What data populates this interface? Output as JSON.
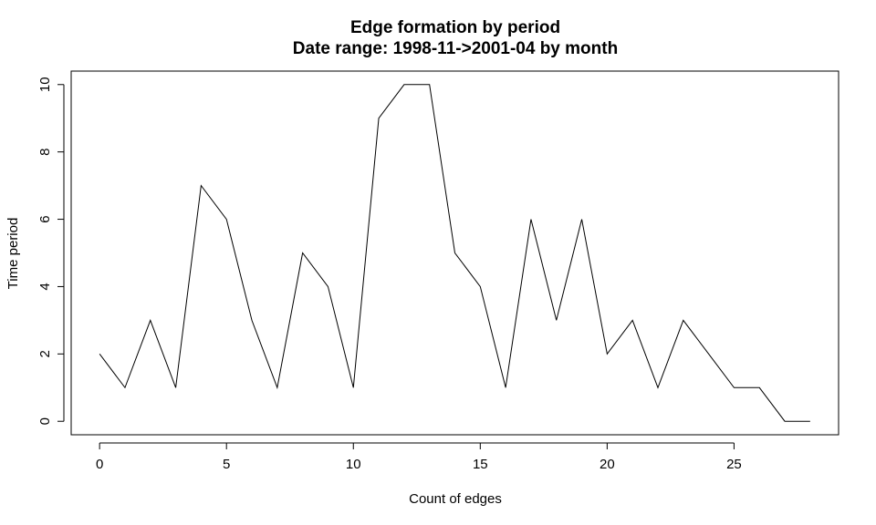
{
  "chart_data": {
    "type": "line",
    "title": "Edge formation by period",
    "subtitle": "Date range: 1998-11->2001-04 by month",
    "xlabel": "Count of edges",
    "ylabel": "Time period",
    "x": [
      0,
      1,
      2,
      3,
      4,
      5,
      6,
      7,
      8,
      9,
      10,
      11,
      12,
      13,
      14,
      15,
      16,
      17,
      18,
      19,
      20,
      21,
      22,
      23,
      24,
      25,
      26,
      27,
      28
    ],
    "series": [
      {
        "values": [
          2,
          1,
          3,
          1,
          7,
          6,
          3,
          1,
          5,
          4,
          1,
          9,
          10,
          10,
          5,
          4,
          1,
          6,
          3,
          6,
          2,
          3,
          1,
          3,
          2,
          1,
          1,
          0,
          0
        ]
      }
    ],
    "xlim": [
      -1.12,
      29.12
    ],
    "ylim": [
      -0.4,
      10.4
    ],
    "xticks": [
      0,
      5,
      10,
      15,
      20,
      25
    ],
    "yticks": [
      0,
      2,
      4,
      6,
      8,
      10
    ],
    "xtick_labels": [
      "0",
      "5",
      "10",
      "15",
      "20",
      "25"
    ],
    "ytick_labels": [
      "0",
      "2",
      "4",
      "6",
      "8",
      "10"
    ],
    "grid": false,
    "legend": "none",
    "line_color": "#000000"
  }
}
